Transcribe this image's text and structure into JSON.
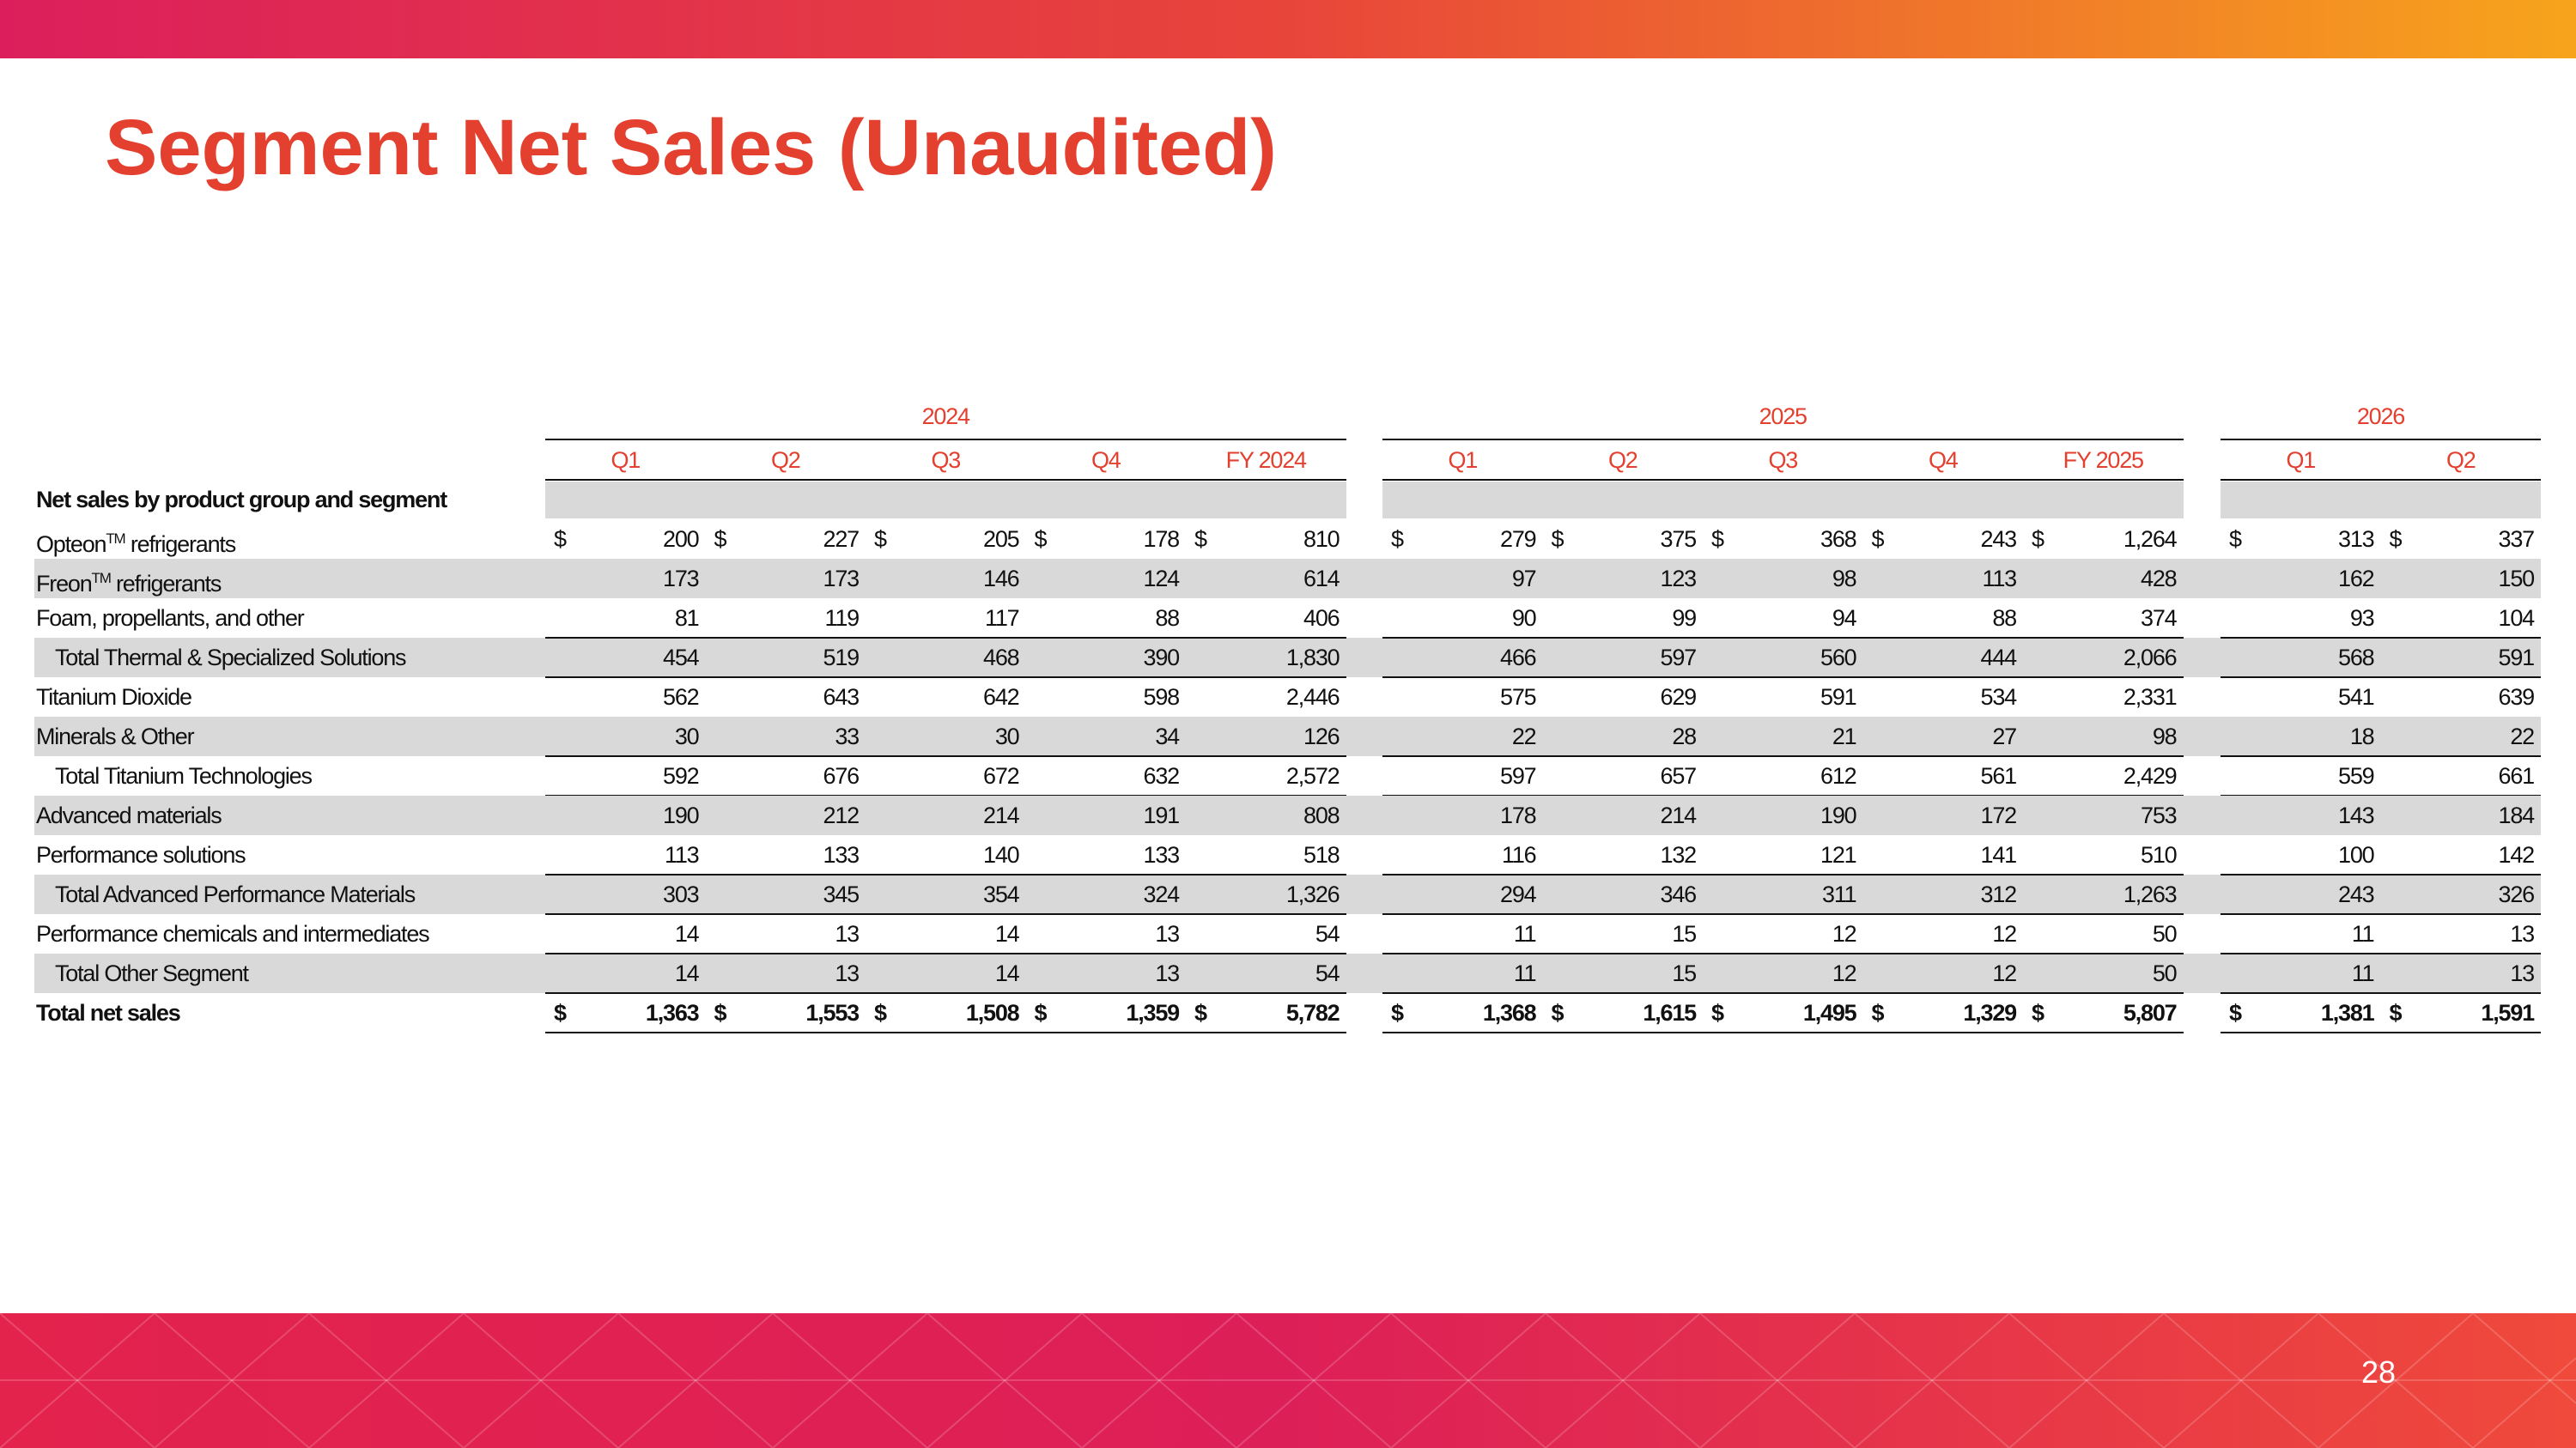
{
  "header": {
    "title": "Segment Net Sales (Unaudited)"
  },
  "table": {
    "currency": "$",
    "groups": [
      {
        "year": "2024",
        "columns": [
          "Q1",
          "Q2",
          "Q3",
          "Q4",
          "FY 2024"
        ]
      },
      {
        "year": "2025",
        "columns": [
          "Q1",
          "Q2",
          "Q3",
          "Q4",
          "FY 2025"
        ]
      },
      {
        "year": "2026",
        "columns": [
          "Q1",
          "Q2"
        ]
      }
    ],
    "section_label": "Net sales by product group and segment",
    "rows": [
      {
        "label": "Opteon",
        "superscript": "TM",
        "label_end": " refrigerants",
        "dollar": true,
        "shaded": false,
        "values": [
          "200",
          "227",
          "205",
          "178",
          "810",
          "279",
          "375",
          "368",
          "243",
          "1,264",
          "313",
          "337"
        ]
      },
      {
        "label": "Freon",
        "superscript": "TM",
        "label_end": " refrigerants",
        "shaded": true,
        "values": [
          "173",
          "173",
          "146",
          "124",
          "614",
          "97",
          "123",
          "98",
          "113",
          "428",
          "162",
          "150"
        ]
      },
      {
        "label": "Foam, propellants, and other",
        "shaded": false,
        "values": [
          "81",
          "119",
          "117",
          "88",
          "406",
          "90",
          "99",
          "94",
          "88",
          "374",
          "93",
          "104"
        ]
      },
      {
        "label": "Total Thermal & Specialized Solutions",
        "total": true,
        "shaded": true,
        "values": [
          "454",
          "519",
          "468",
          "390",
          "1,830",
          "466",
          "597",
          "560",
          "444",
          "2,066",
          "568",
          "591"
        ]
      },
      {
        "label": "Titanium Dioxide",
        "shaded": false,
        "values": [
          "562",
          "643",
          "642",
          "598",
          "2,446",
          "575",
          "629",
          "591",
          "534",
          "2,331",
          "541",
          "639"
        ]
      },
      {
        "label": "Minerals & Other",
        "shaded": true,
        "values": [
          "30",
          "33",
          "30",
          "34",
          "126",
          "22",
          "28",
          "21",
          "27",
          "98",
          "18",
          "22"
        ]
      },
      {
        "label": "Total Titanium Technologies",
        "total": true,
        "shaded": false,
        "values": [
          "592",
          "676",
          "672",
          "632",
          "2,572",
          "597",
          "657",
          "612",
          "561",
          "2,429",
          "559",
          "661"
        ]
      },
      {
        "label": "Advanced materials",
        "shaded": true,
        "values": [
          "190",
          "212",
          "214",
          "191",
          "808",
          "178",
          "214",
          "190",
          "172",
          "753",
          "143",
          "184"
        ]
      },
      {
        "label": "Performance solutions",
        "shaded": false,
        "values": [
          "113",
          "133",
          "140",
          "133",
          "518",
          "116",
          "132",
          "121",
          "141",
          "510",
          "100",
          "142"
        ]
      },
      {
        "label": "Total Advanced Performance Materials",
        "total": true,
        "shaded": true,
        "values": [
          "303",
          "345",
          "354",
          "324",
          "1,326",
          "294",
          "346",
          "311",
          "312",
          "1,263",
          "243",
          "326"
        ]
      },
      {
        "label": "Performance chemicals and intermediates",
        "shaded": false,
        "values": [
          "14",
          "13",
          "14",
          "13",
          "54",
          "11",
          "15",
          "12",
          "12",
          "50",
          "11",
          "13"
        ]
      },
      {
        "label": "Total Other Segment",
        "total": true,
        "shaded": true,
        "values": [
          "14",
          "13",
          "14",
          "13",
          "54",
          "11",
          "15",
          "12",
          "12",
          "50",
          "11",
          "13"
        ]
      },
      {
        "label": "Total net sales",
        "bold": true,
        "dollar": true,
        "shaded": false,
        "values": [
          "1,363",
          "1,553",
          "1,508",
          "1,359",
          "5,782",
          "1,368",
          "1,615",
          "1,495",
          "1,329",
          "5,807",
          "1,381",
          "1,591"
        ]
      }
    ]
  },
  "footer": {
    "page_number": "28"
  }
}
